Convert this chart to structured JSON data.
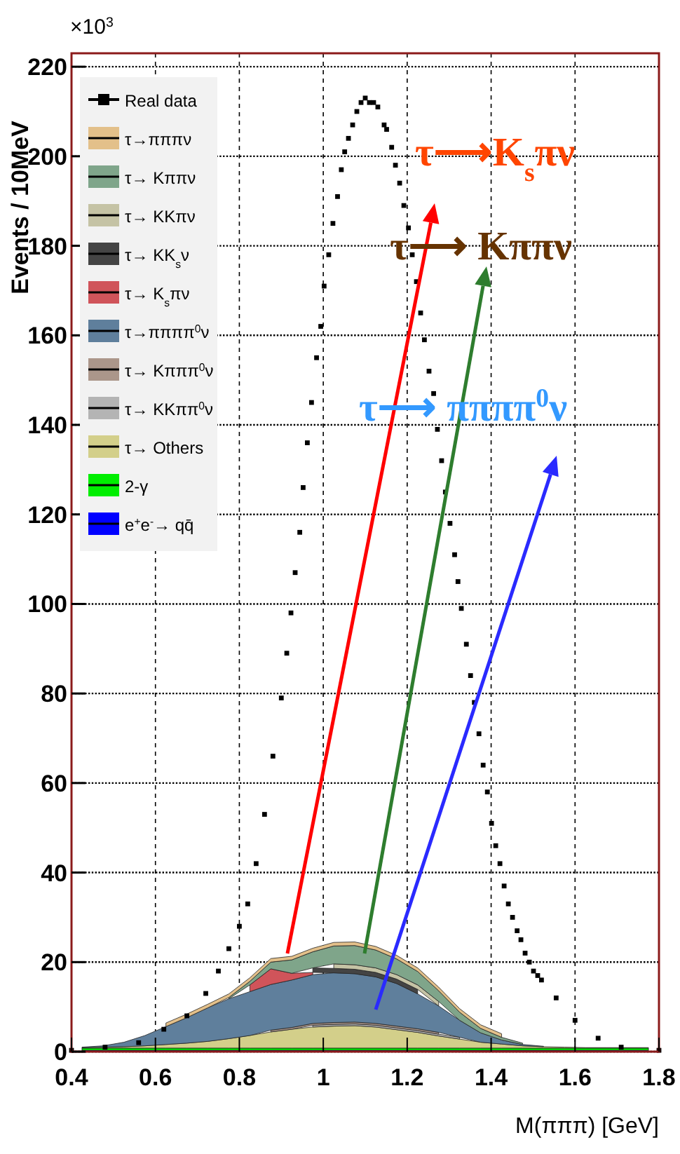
{
  "chart_data": {
    "type": "area",
    "ylabel": "Events / 10MeV",
    "xlabel": "M(πππ) [GeV]",
    "annotations": [
      "×10$^{3}$",
      "τ⟶K$_{s}$πν",
      "τ⟶ Kππν",
      "τ⟶ ππππ$^{0}$ν"
    ],
    "x": [
      0.425,
      0.475,
      0.525,
      0.575,
      0.625,
      0.675,
      0.725,
      0.775,
      0.825,
      0.875,
      0.925,
      0.975,
      1.025,
      1.075,
      1.125,
      1.175,
      1.225,
      1.275,
      1.325,
      1.375,
      1.425,
      1.475,
      1.525,
      1.575,
      1.625,
      1.675,
      1.725,
      1.775
    ],
    "stacked": true,
    "series": [
      {
        "name": "e$^{+}$e$^{-}$→ qq̄",
        "color": "#0000ff",
        "values": [
          0.3,
          0.3,
          0.3,
          0.3,
          0.3,
          0.3,
          0.3,
          0.3,
          0.3,
          0.3,
          0.3,
          0.3,
          0.3,
          0.3,
          0.3,
          0.3,
          0.3,
          0.3,
          0.3,
          0.3,
          0.3,
          0.3,
          0.3,
          0.3,
          0.3,
          0.3,
          0.3,
          0.3
        ]
      },
      {
        "name": "2-γ",
        "color": "#00ee00",
        "values": [
          0.5,
          0.5,
          0.5,
          0.5,
          0.5,
          0.5,
          0.5,
          0.5,
          0.5,
          0.5,
          0.5,
          0.5,
          0.5,
          0.5,
          0.5,
          0.5,
          0.5,
          0.5,
          0.5,
          0.5,
          0.5,
          0.5,
          0.5,
          0.5,
          0.5,
          0.5,
          0.5,
          0.5
        ]
      },
      {
        "name": "τ→ Others",
        "color": "#d3cf8a",
        "values": [
          0.1,
          0.2,
          0.3,
          0.5,
          0.8,
          1.1,
          1.5,
          2.1,
          2.8,
          3.6,
          4.2,
          4.7,
          4.9,
          5.0,
          4.7,
          4.1,
          3.5,
          2.7,
          2.0,
          1.3,
          0.9,
          0.5,
          0.3,
          0.2,
          0.1,
          0.1,
          0.1,
          0.1
        ]
      },
      {
        "name": "τ→ KKππ$^{0}$ν",
        "color": "#b4b4b4",
        "values": [
          null,
          null,
          null,
          null,
          null,
          null,
          null,
          null,
          null,
          null,
          null,
          0.4,
          0.4,
          0.4,
          0.4,
          0.4,
          0.4,
          0.4,
          0.4,
          null,
          null,
          null,
          null,
          null,
          null,
          null,
          null,
          null
        ]
      },
      {
        "name": "τ→ Kπππ$^{0}$ν",
        "color": "#ab968a",
        "values": [
          null,
          null,
          null,
          null,
          null,
          null,
          null,
          null,
          null,
          0.4,
          0.4,
          0.4,
          0.4,
          0.4,
          0.4,
          0.4,
          0.4,
          0.4,
          null,
          null,
          null,
          null,
          null,
          null,
          null,
          null,
          null,
          null
        ]
      },
      {
        "name": "τ→ππππ$^{0}$ν",
        "color": "#5f7f9c",
        "values": [
          0.1,
          0.3,
          1.0,
          2.3,
          4.0,
          5.7,
          7.5,
          8.9,
          9.8,
          10.2,
          10.6,
          10.9,
          11.1,
          10.8,
          10.4,
          9.5,
          7.8,
          5.9,
          3.8,
          2.1,
          0.9,
          0.3,
          0.1,
          null,
          null,
          null,
          null,
          null
        ]
      },
      {
        "name": "τ→ K$_{s}$πν",
        "color": "#d0545a",
        "values": [
          null,
          null,
          null,
          null,
          null,
          null,
          null,
          null,
          1.5,
          3.5,
          1.5,
          0.5,
          null,
          null,
          null,
          null,
          null,
          null,
          null,
          null,
          null,
          null,
          null,
          null,
          null,
          null,
          null,
          null
        ]
      },
      {
        "name": "τ→ KK$_{s}$ν",
        "color": "#444444",
        "values": [
          null,
          null,
          null,
          null,
          null,
          null,
          null,
          null,
          null,
          null,
          null,
          1,
          1,
          1,
          1,
          1,
          1,
          null,
          null,
          null,
          null,
          null,
          null,
          null,
          null,
          null,
          null,
          null
        ]
      },
      {
        "name": "τ→ KKπν",
        "color": "#c5c3a5",
        "values": [
          null,
          null,
          null,
          null,
          null,
          null,
          null,
          null,
          null,
          null,
          null,
          null,
          1,
          1,
          1,
          1,
          1,
          1,
          null,
          null,
          null,
          null,
          null,
          null,
          null,
          null,
          null,
          null
        ]
      },
      {
        "name": "τ→ Kππν",
        "color": "#7fa58a",
        "values": [
          null,
          null,
          null,
          null,
          null,
          null,
          null,
          0.3,
          0.8,
          1.5,
          3.0,
          3.6,
          4.0,
          4.3,
          4.0,
          3.5,
          3.0,
          2.4,
          1.8,
          1.0,
          0.6,
          0.3,
          null,
          null,
          null,
          null,
          null,
          null
        ]
      },
      {
        "name": "τ→πππν",
        "color": "#e3c08a",
        "values": [
          null,
          null,
          null,
          null,
          0.8,
          0.8,
          0.8,
          0.8,
          0.8,
          0.8,
          0.8,
          0.8,
          0.8,
          0.8,
          0.8,
          0.8,
          0.8,
          0.8,
          0.8,
          0.8,
          0.8,
          null,
          null,
          null,
          null,
          null,
          null,
          null
        ]
      },
      {
        "name": "Real data",
        "type": "scatter",
        "marker": "square",
        "color": "#000000",
        "x": [
          0.4,
          0.48,
          0.56,
          0.62,
          0.675,
          0.72,
          0.75,
          0.775,
          0.8,
          0.82,
          0.84,
          0.86,
          0.88,
          0.9,
          0.913,
          0.923,
          0.933,
          0.944,
          0.952,
          0.962,
          0.972,
          0.984,
          0.994,
          1.002,
          1.013,
          1.023,
          1.034,
          1.043,
          1.051,
          1.06,
          1.07,
          1.08,
          1.09,
          1.1,
          1.11,
          1.12,
          1.13,
          1.145,
          1.151,
          1.163,
          1.172,
          1.182,
          1.192,
          1.203,
          1.212,
          1.222,
          1.232,
          1.241,
          1.252,
          1.263,
          1.272,
          1.282,
          1.291,
          1.302,
          1.313,
          1.321,
          1.329,
          1.341,
          1.351,
          1.36,
          1.371,
          1.381,
          1.391,
          1.401,
          1.411,
          1.421,
          1.431,
          1.441,
          1.451,
          1.462,
          1.471,
          1.481,
          1.491,
          1.501,
          1.511,
          1.52,
          1.555,
          1.6,
          1.655,
          1.71,
          1.8
        ],
        "values": [
          0.3,
          1,
          2,
          5,
          8,
          13,
          18,
          23,
          28,
          33,
          42,
          53,
          66,
          79,
          89,
          98,
          107,
          116,
          126,
          136,
          145,
          155,
          162,
          171,
          178,
          185,
          191,
          197,
          201,
          204,
          207,
          210,
          212,
          213,
          212,
          212,
          211,
          207,
          206,
          202,
          198,
          194,
          189,
          184,
          178,
          172,
          165,
          159,
          152,
          147,
          139,
          132,
          125,
          118,
          111,
          105,
          99,
          91,
          84,
          78,
          71,
          64,
          58,
          51,
          46,
          42,
          37,
          33,
          30,
          27,
          25,
          22,
          20,
          18,
          17,
          16,
          12,
          7,
          3,
          1,
          0.3
        ]
      }
    ],
    "xlim": [
      0.4,
      1.8
    ],
    "xticks": [
      0.4,
      0.6,
      0.8,
      1,
      1.2,
      1.4,
      1.6,
      1.8
    ],
    "ylim": [
      0,
      223
    ],
    "yticks": [
      0,
      20,
      40,
      60,
      80,
      100,
      120,
      140,
      160,
      180,
      200,
      220
    ],
    "grid": true,
    "legend": "top left"
  }
}
